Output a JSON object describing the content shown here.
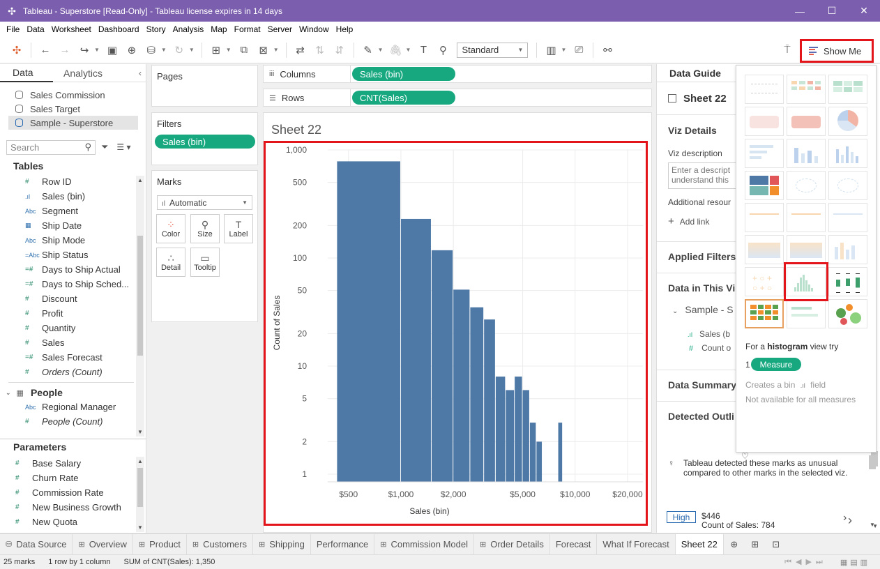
{
  "window": {
    "title": "Tableau - Superstore [Read-Only] - Tableau license expires in 14 days",
    "minimize": "—",
    "maximize": "☐",
    "close": "✕"
  },
  "menu": [
    "File",
    "Data",
    "Worksheet",
    "Dashboard",
    "Story",
    "Analysis",
    "Map",
    "Format",
    "Server",
    "Window",
    "Help"
  ],
  "toolbar": {
    "fit_select": "Standard",
    "show_me_label": "Show Me"
  },
  "data_pane": {
    "tabs": {
      "data": "Data",
      "analytics": "Analytics"
    },
    "data_sources": [
      "Sales Commission",
      "Sales Target",
      "Sample - Superstore"
    ],
    "search_placeholder": "Search",
    "tables_heading": "Tables",
    "fields": [
      {
        "icon": "#",
        "label": "Row ID"
      },
      {
        "icon": ".ıl",
        "label": "Sales (bin)"
      },
      {
        "icon": "Abc",
        "label": "Segment"
      },
      {
        "icon": "▦",
        "label": "Ship Date"
      },
      {
        "icon": "Abc",
        "label": "Ship Mode"
      },
      {
        "icon": "=Abc",
        "label": "Ship Status"
      },
      {
        "icon": "=#",
        "label": "Days to Ship Actual"
      },
      {
        "icon": "=#",
        "label": "Days to Ship Sched..."
      },
      {
        "icon": "#",
        "label": "Discount"
      },
      {
        "icon": "#",
        "label": "Profit"
      },
      {
        "icon": "#",
        "label": "Quantity"
      },
      {
        "icon": "#",
        "label": "Sales"
      },
      {
        "icon": "=#",
        "label": "Sales Forecast"
      },
      {
        "icon": "#",
        "label": "Orders (Count)"
      }
    ],
    "people_heading": "People",
    "people_fields": [
      {
        "icon": "Abc",
        "label": "Regional Manager"
      },
      {
        "icon": "#",
        "label": "People (Count)"
      }
    ],
    "parameters_heading": "Parameters",
    "parameters": [
      "Base Salary",
      "Churn Rate",
      "Commission Rate",
      "New Business Growth",
      "New Quota"
    ]
  },
  "cards": {
    "pages": "Pages",
    "filters": "Filters",
    "filter_pill": "Sales (bin)",
    "marks": "Marks",
    "mark_type": "Automatic",
    "mark_cards": [
      "Color",
      "Size",
      "Label",
      "Detail",
      "Tooltip"
    ]
  },
  "shelves": {
    "columns_label": "Columns",
    "columns_pill": "Sales (bin)",
    "rows_label": "Rows",
    "rows_pill": "CNT(Sales)"
  },
  "sheet": {
    "title": "Sheet 22"
  },
  "chart_data": {
    "type": "bar",
    "subtype": "histogram",
    "xlabel": "Sales (bin)",
    "ylabel": "Count of Sales",
    "x_scale": "log",
    "y_scale": "log",
    "xlim": [
      380,
      24500
    ],
    "ylim": [
      0.85,
      1000
    ],
    "x_ticks": [
      500,
      1000,
      2000,
      5000,
      10000,
      20000
    ],
    "x_tick_labels": [
      "$500",
      "$1,000",
      "$2,000",
      "$5,000",
      "$10,000",
      "$20,000"
    ],
    "y_ticks": [
      1,
      2,
      5,
      10,
      20,
      50,
      100,
      200,
      500,
      1000
    ],
    "y_tick_labels": [
      "1",
      "2",
      "5",
      "10",
      "20",
      "50",
      "100",
      "200",
      "500",
      "1,000"
    ],
    "bar_color": "#4e79a7",
    "grid": true,
    "bins": [
      {
        "start": 0,
        "end": 1000,
        "count": 784
      },
      {
        "start": 1000,
        "end": 1500,
        "count": 230
      },
      {
        "start": 1500,
        "end": 2000,
        "count": 118
      },
      {
        "start": 2000,
        "end": 2500,
        "count": 51
      },
      {
        "start": 2500,
        "end": 3000,
        "count": 35
      },
      {
        "start": 3000,
        "end": 3500,
        "count": 27
      },
      {
        "start": 3500,
        "end": 4000,
        "count": 8
      },
      {
        "start": 4000,
        "end": 4500,
        "count": 6
      },
      {
        "start": 4500,
        "end": 5000,
        "count": 8
      },
      {
        "start": 5000,
        "end": 5500,
        "count": 6
      },
      {
        "start": 5500,
        "end": 6000,
        "count": 3
      },
      {
        "start": 6000,
        "end": 6500,
        "count": 2
      },
      {
        "start": 8000,
        "end": 8500,
        "count": 3
      }
    ]
  },
  "data_guide": {
    "title": "Data Guide",
    "sheet": "Sheet 22",
    "viz_details": "Viz Details",
    "viz_description": "Viz description",
    "desc_placeholder_1": "Enter a descript",
    "desc_placeholder_2": "understand this",
    "additional": "Additional resour",
    "add_link": "Add link",
    "applied_filters": "Applied Filters",
    "data_in_viz": "Data in This Vi",
    "source": "Sample - S",
    "field1": "Sales (b",
    "field2": "Count o",
    "data_summary": "Data Summary",
    "detected": "Detected Outli",
    "outlier_text": "Tableau detected these marks as unusual compared to other marks in the selected viz.",
    "high_badge": "High",
    "high_value": "$446",
    "high_count": "Count of Sales: 784"
  },
  "show_me": {
    "hint_prefix": "For a",
    "hint_bold": "histogram",
    "hint_suffix": "view try",
    "measure_count": "1",
    "measure_label": "Measure",
    "creates_bin_prefix": "Creates a bin",
    "creates_bin_suffix": "field",
    "not_available": "Not available for all measures"
  },
  "tabs": [
    "Data Source",
    "Overview",
    "Product",
    "Customers",
    "Shipping",
    "Performance",
    "Commission Model",
    "Order Details",
    "Forecast",
    "What If Forecast",
    "Sheet 22"
  ],
  "status": {
    "marks": "25 marks",
    "rows": "1 row by 1 column",
    "sum": "SUM of CNT(Sales): 1,350"
  }
}
